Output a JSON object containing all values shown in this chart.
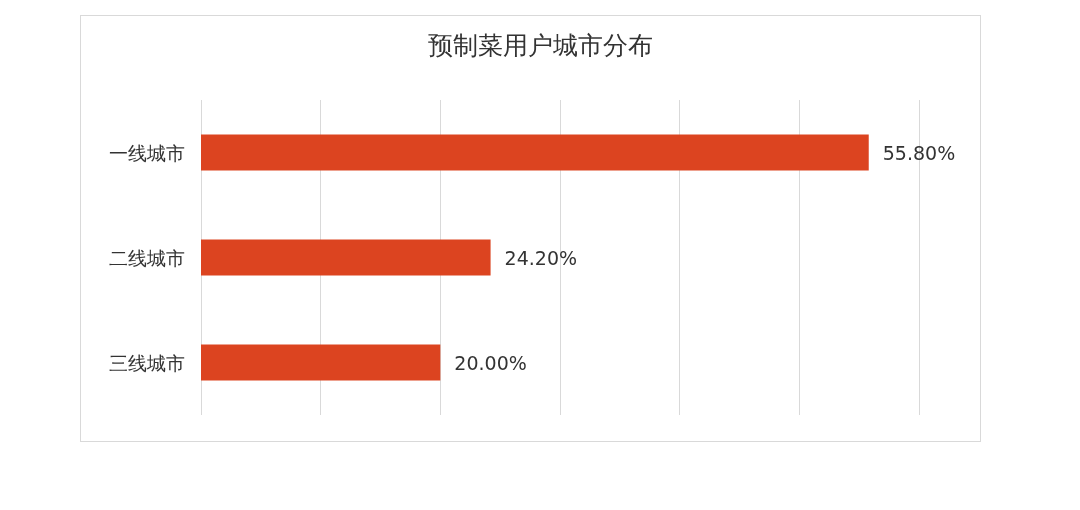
{
  "chart_data": {
    "type": "bar",
    "orientation": "horizontal",
    "title": "预制菜用户城市分布",
    "categories": [
      "一线城市",
      "二线城市",
      "三线城市"
    ],
    "values": [
      55.8,
      24.2,
      20.0
    ],
    "value_labels": [
      "55.80%",
      "24.20%",
      "20.00%"
    ],
    "color": "#dc4420",
    "xlim": [
      0,
      60
    ],
    "xticks": [
      {
        "value": 0,
        "label": null
      },
      {
        "value": 10,
        "label": null
      },
      {
        "value": 20,
        "label": null
      },
      {
        "value": 30,
        "label": null
      },
      {
        "value": 40,
        "label": null
      },
      {
        "value": 50,
        "label": null
      },
      {
        "value": 60,
        "label": null
      }
    ],
    "tick_labels": "y",
    "grid": "x"
  }
}
